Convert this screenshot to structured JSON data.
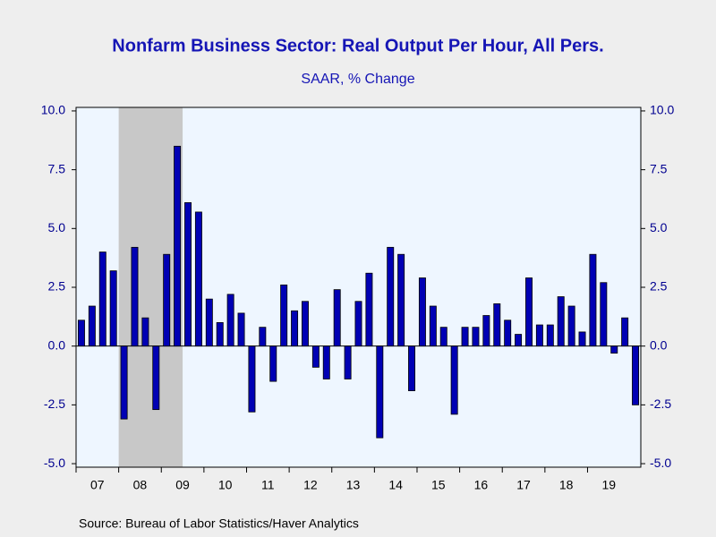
{
  "chart_data": {
    "type": "bar",
    "title": "Nonfarm Business Sector: Real Output Per Hour, All Pers.",
    "subtitle": "SAAR, % Change",
    "source": "Source:  Bureau of Labor Statistics/Haver Analytics",
    "categories": [
      "07",
      null,
      null,
      null,
      "08",
      null,
      null,
      null,
      "09",
      null,
      null,
      null,
      "10",
      null,
      null,
      null,
      "11",
      null,
      null,
      null,
      "12",
      null,
      null,
      null,
      "13",
      null,
      null,
      null,
      "14",
      null,
      null,
      null,
      "15",
      null,
      null,
      null,
      "16",
      null,
      null,
      null,
      "17",
      null,
      null,
      null,
      "18",
      null,
      null,
      null,
      "19",
      null,
      null,
      null,
      null
    ],
    "values": [
      1.1,
      1.7,
      4.0,
      3.2,
      -3.1,
      4.2,
      1.2,
      -2.7,
      3.9,
      8.5,
      6.1,
      5.7,
      2.0,
      1.0,
      2.2,
      1.4,
      -2.8,
      0.8,
      -1.5,
      2.6,
      1.5,
      1.9,
      -0.9,
      -1.4,
      2.4,
      -1.4,
      1.9,
      3.1,
      -3.9,
      4.2,
      3.9,
      -1.9,
      2.9,
      1.7,
      0.8,
      -2.9,
      0.8,
      0.8,
      1.3,
      1.8,
      1.1,
      0.5,
      2.9,
      0.9,
      0.9,
      2.1,
      1.7,
      0.6,
      3.9,
      2.7,
      -0.3,
      1.2,
      -2.5
    ],
    "color": "#0000b4",
    "ylim": [
      -5.15,
      10.15
    ],
    "yticks": [
      {
        "value": -5,
        "label": "-5.0"
      },
      {
        "value": -2.5,
        "label": "-2.5"
      },
      {
        "value": 0,
        "label": "0.0"
      },
      {
        "value": 2.5,
        "label": "2.5"
      },
      {
        "value": 5,
        "label": "5.0"
      },
      {
        "value": 7.5,
        "label": "7.5"
      },
      {
        "value": 10,
        "label": "10.0"
      }
    ],
    "shade": {
      "from": 4,
      "to": 9,
      "color": "#c8c8c8"
    },
    "grid": false
  }
}
